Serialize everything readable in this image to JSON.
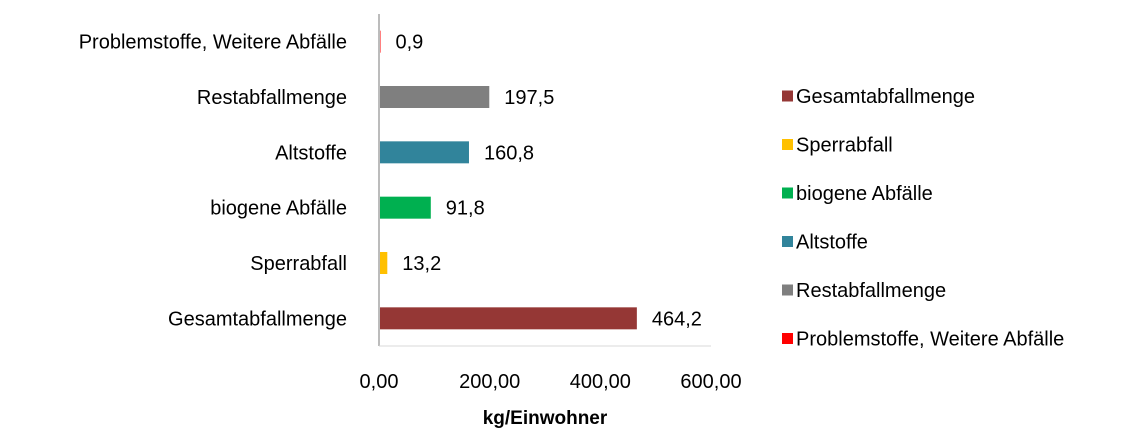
{
  "chart_data": {
    "type": "bar",
    "orientation": "horizontal",
    "categories": [
      "Gesamtabfallmenge",
      "Sperrabfall",
      "biogene Abfälle",
      "Altstoffe",
      "Restabfallmenge",
      "Problemstoffe, Weitere Abfälle"
    ],
    "values": [
      464.2,
      13.2,
      91.8,
      160.8,
      197.5,
      0.9
    ],
    "value_labels": [
      "464,2",
      "13,2",
      "91,8",
      "160,8",
      "197,5",
      "0,9"
    ],
    "colors": [
      "#953735",
      "#FFC000",
      "#00B050",
      "#31849B",
      "#7F7F7F",
      "#FF0000"
    ],
    "xlabel": "kg/Einwohner",
    "xlim": [
      0,
      600
    ],
    "xticks": [
      0,
      200,
      400,
      600
    ],
    "xtick_labels": [
      "0,00",
      "200,00",
      "400,00",
      "600,00"
    ],
    "grid": false,
    "legend": {
      "position": "right",
      "entries": [
        "Gesamtabfallmenge",
        "Sperrabfall",
        "biogene Abfälle",
        "Altstoffe",
        "Restabfallmenge",
        "Problemstoffe, Weitere Abfälle"
      ]
    }
  }
}
